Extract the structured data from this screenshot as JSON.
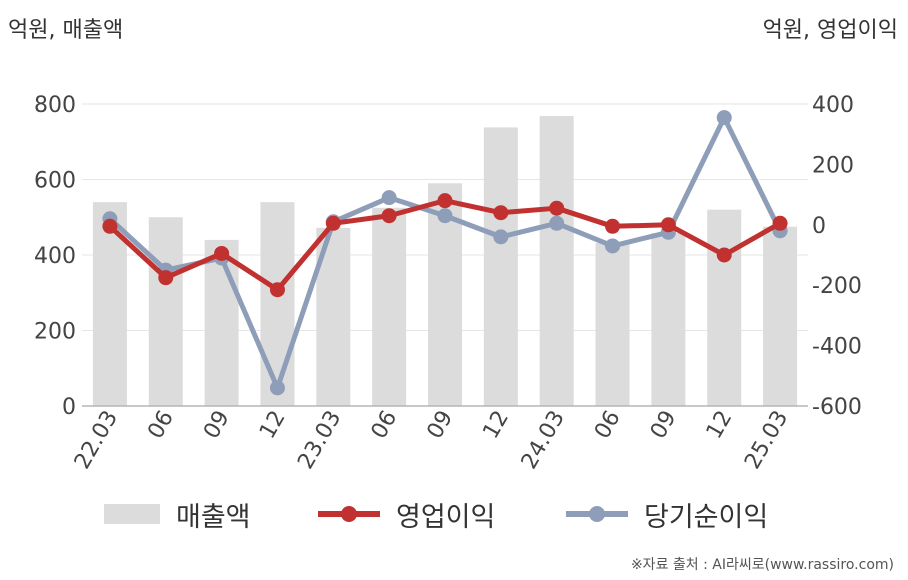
{
  "units": {
    "left": "억원, 매출액",
    "right": "억원, 영업이익"
  },
  "source": "※자료 출처 : AI라씨로(www.rassiro.com)",
  "colors": {
    "bar": "#dcdcdc",
    "op": "#c0312f",
    "net": "#8e9db8",
    "grid": "#e6e6e6"
  },
  "chart_data": {
    "type": "bar",
    "categories": [
      "22.03",
      "06",
      "09",
      "12",
      "23.03",
      "06",
      "09",
      "12",
      "24.03",
      "06",
      "09",
      "12",
      "25.03"
    ],
    "y_left": {
      "ylim": [
        0,
        800
      ],
      "ticks": [
        0,
        200,
        400,
        600,
        800
      ]
    },
    "y_right": {
      "ylim": [
        -600,
        400
      ],
      "ticks": [
        -600,
        -400,
        -200,
        0,
        200,
        400
      ]
    },
    "series": [
      {
        "name": "매출액",
        "type": "bar",
        "axis": "left",
        "values": [
          540,
          500,
          440,
          540,
          472,
          525,
          590,
          738,
          768,
          432,
          458,
          520,
          475
        ]
      },
      {
        "name": "영업이익",
        "type": "line",
        "axis": "right",
        "values": [
          -5,
          -175,
          -95,
          -215,
          5,
          30,
          80,
          40,
          55,
          -5,
          0,
          -100,
          5
        ]
      },
      {
        "name": "당기순이익",
        "type": "line",
        "axis": "right",
        "values": [
          20,
          -150,
          -110,
          -540,
          10,
          90,
          30,
          -40,
          5,
          -70,
          -25,
          355,
          -20
        ]
      }
    ],
    "grid": true,
    "legend": "bottom"
  }
}
